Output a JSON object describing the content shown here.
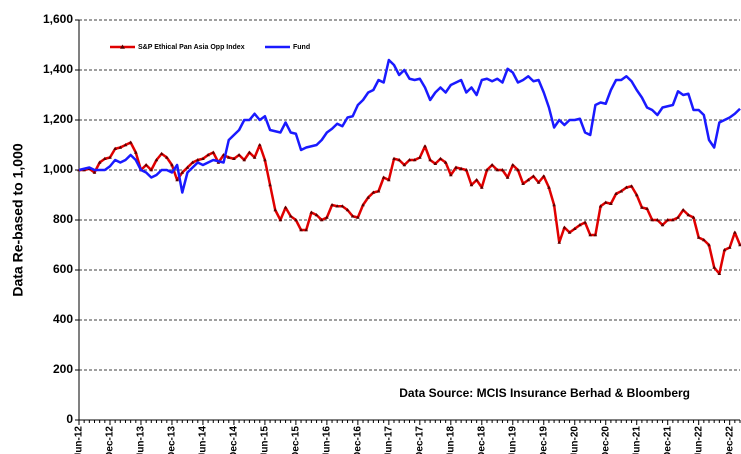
{
  "chart_data": {
    "type": "line",
    "y_label": "Data Re-based to 1,000",
    "annotation": "Data Source: MCIS Insurance Berhad & Bloomberg",
    "legend": "top-left",
    "grid": true,
    "ylim": [
      0,
      1600
    ],
    "yticks": [
      0,
      200,
      400,
      600,
      800,
      {
        "value": 1000,
        "label": "1,000"
      },
      {
        "value": 1200,
        "label": "1,200"
      },
      {
        "value": 1400,
        "label": "1,400"
      },
      {
        "value": 1600,
        "label": "1,600"
      }
    ],
    "categories": [
      "Jun-12",
      null,
      null,
      null,
      null,
      null,
      "Dec-12",
      null,
      null,
      null,
      null,
      null,
      "Jun-13",
      null,
      null,
      null,
      null,
      null,
      "Dec-13",
      null,
      null,
      null,
      null,
      null,
      "Jun-14",
      null,
      null,
      null,
      null,
      null,
      "Dec-14",
      null,
      null,
      null,
      null,
      null,
      "Jun-15",
      null,
      null,
      null,
      null,
      null,
      "Dec-15",
      null,
      null,
      null,
      null,
      null,
      "Jun-16",
      null,
      null,
      null,
      null,
      null,
      "Dec-16",
      null,
      null,
      null,
      null,
      null,
      "Jun-17",
      null,
      null,
      null,
      null,
      null,
      "Dec-17",
      null,
      null,
      null,
      null,
      null,
      "Jun-18",
      null,
      null,
      null,
      null,
      null,
      "Dec-18",
      null,
      null,
      null,
      null,
      null,
      "Jun-19",
      null,
      null,
      null,
      null,
      null,
      "Dec-19",
      null,
      null,
      null,
      null,
      null,
      "Jun-20",
      null,
      null,
      null,
      null,
      null,
      "Dec-20",
      null,
      null,
      null,
      null,
      null,
      "Jun-21",
      null,
      null,
      null,
      null,
      null,
      "Dec-21",
      null,
      null,
      null,
      null,
      null,
      "Jun-22",
      null,
      null,
      null,
      null,
      null,
      "Dec-22",
      null,
      null
    ],
    "series": [
      {
        "name": "S&P Ethical Pan Asia Opp Index",
        "color": "#e00000",
        "marker_color": "#5a0000",
        "values": [
          1000,
          1000,
          1005,
          990,
          1030,
          1045,
          1050,
          1085,
          1090,
          1100,
          1110,
          1070,
          1000,
          1020,
          1000,
          1040,
          1065,
          1050,
          1020,
          960,
          990,
          1010,
          1030,
          1040,
          1045,
          1060,
          1070,
          1030,
          1060,
          1050,
          1045,
          1060,
          1040,
          1070,
          1050,
          1100,
          1040,
          940,
          840,
          800,
          850,
          815,
          800,
          760,
          760,
          830,
          820,
          800,
          810,
          860,
          855,
          855,
          840,
          815,
          810,
          860,
          890,
          910,
          915,
          970,
          960,
          1045,
          1040,
          1020,
          1040,
          1040,
          1050,
          1095,
          1040,
          1025,
          1045,
          1030,
          980,
          1010,
          1005,
          1000,
          940,
          960,
          930,
          1000,
          1020,
          1000,
          1000,
          970,
          1020,
          1000,
          945,
          960,
          975,
          950,
          975,
          930,
          860,
          710,
          770,
          750,
          765,
          780,
          790,
          740,
          740,
          855,
          870,
          865,
          905,
          915,
          930,
          935,
          900,
          850,
          845,
          800,
          800,
          780,
          800,
          800,
          810,
          840,
          820,
          810,
          730,
          720,
          700,
          610,
          585,
          680,
          690,
          750,
          700
        ]
      },
      {
        "name": "Fund",
        "color": "#1a1aff",
        "values": [
          1000,
          1005,
          1010,
          1000,
          1000,
          1000,
          1015,
          1040,
          1030,
          1040,
          1060,
          1040,
          1000,
          990,
          970,
          980,
          1000,
          1000,
          990,
          1020,
          910,
          990,
          1010,
          1030,
          1020,
          1030,
          1040,
          1035,
          1030,
          1120,
          1140,
          1160,
          1200,
          1200,
          1225,
          1200,
          1215,
          1160,
          1155,
          1150,
          1190,
          1150,
          1145,
          1080,
          1090,
          1095,
          1100,
          1120,
          1150,
          1165,
          1185,
          1175,
          1210,
          1215,
          1260,
          1280,
          1310,
          1320,
          1360,
          1350,
          1440,
          1420,
          1380,
          1400,
          1365,
          1360,
          1365,
          1330,
          1280,
          1310,
          1330,
          1310,
          1340,
          1350,
          1360,
          1310,
          1330,
          1300,
          1360,
          1365,
          1355,
          1365,
          1350,
          1405,
          1390,
          1350,
          1360,
          1375,
          1355,
          1360,
          1310,
          1250,
          1170,
          1200,
          1180,
          1200,
          1200,
          1205,
          1150,
          1140,
          1260,
          1270,
          1265,
          1320,
          1360,
          1360,
          1375,
          1355,
          1320,
          1290,
          1250,
          1240,
          1220,
          1250,
          1255,
          1260,
          1315,
          1300,
          1305,
          1240,
          1240,
          1220,
          1120,
          1090,
          1190,
          1200,
          1210,
          1225,
          1245
        ]
      }
    ]
  }
}
